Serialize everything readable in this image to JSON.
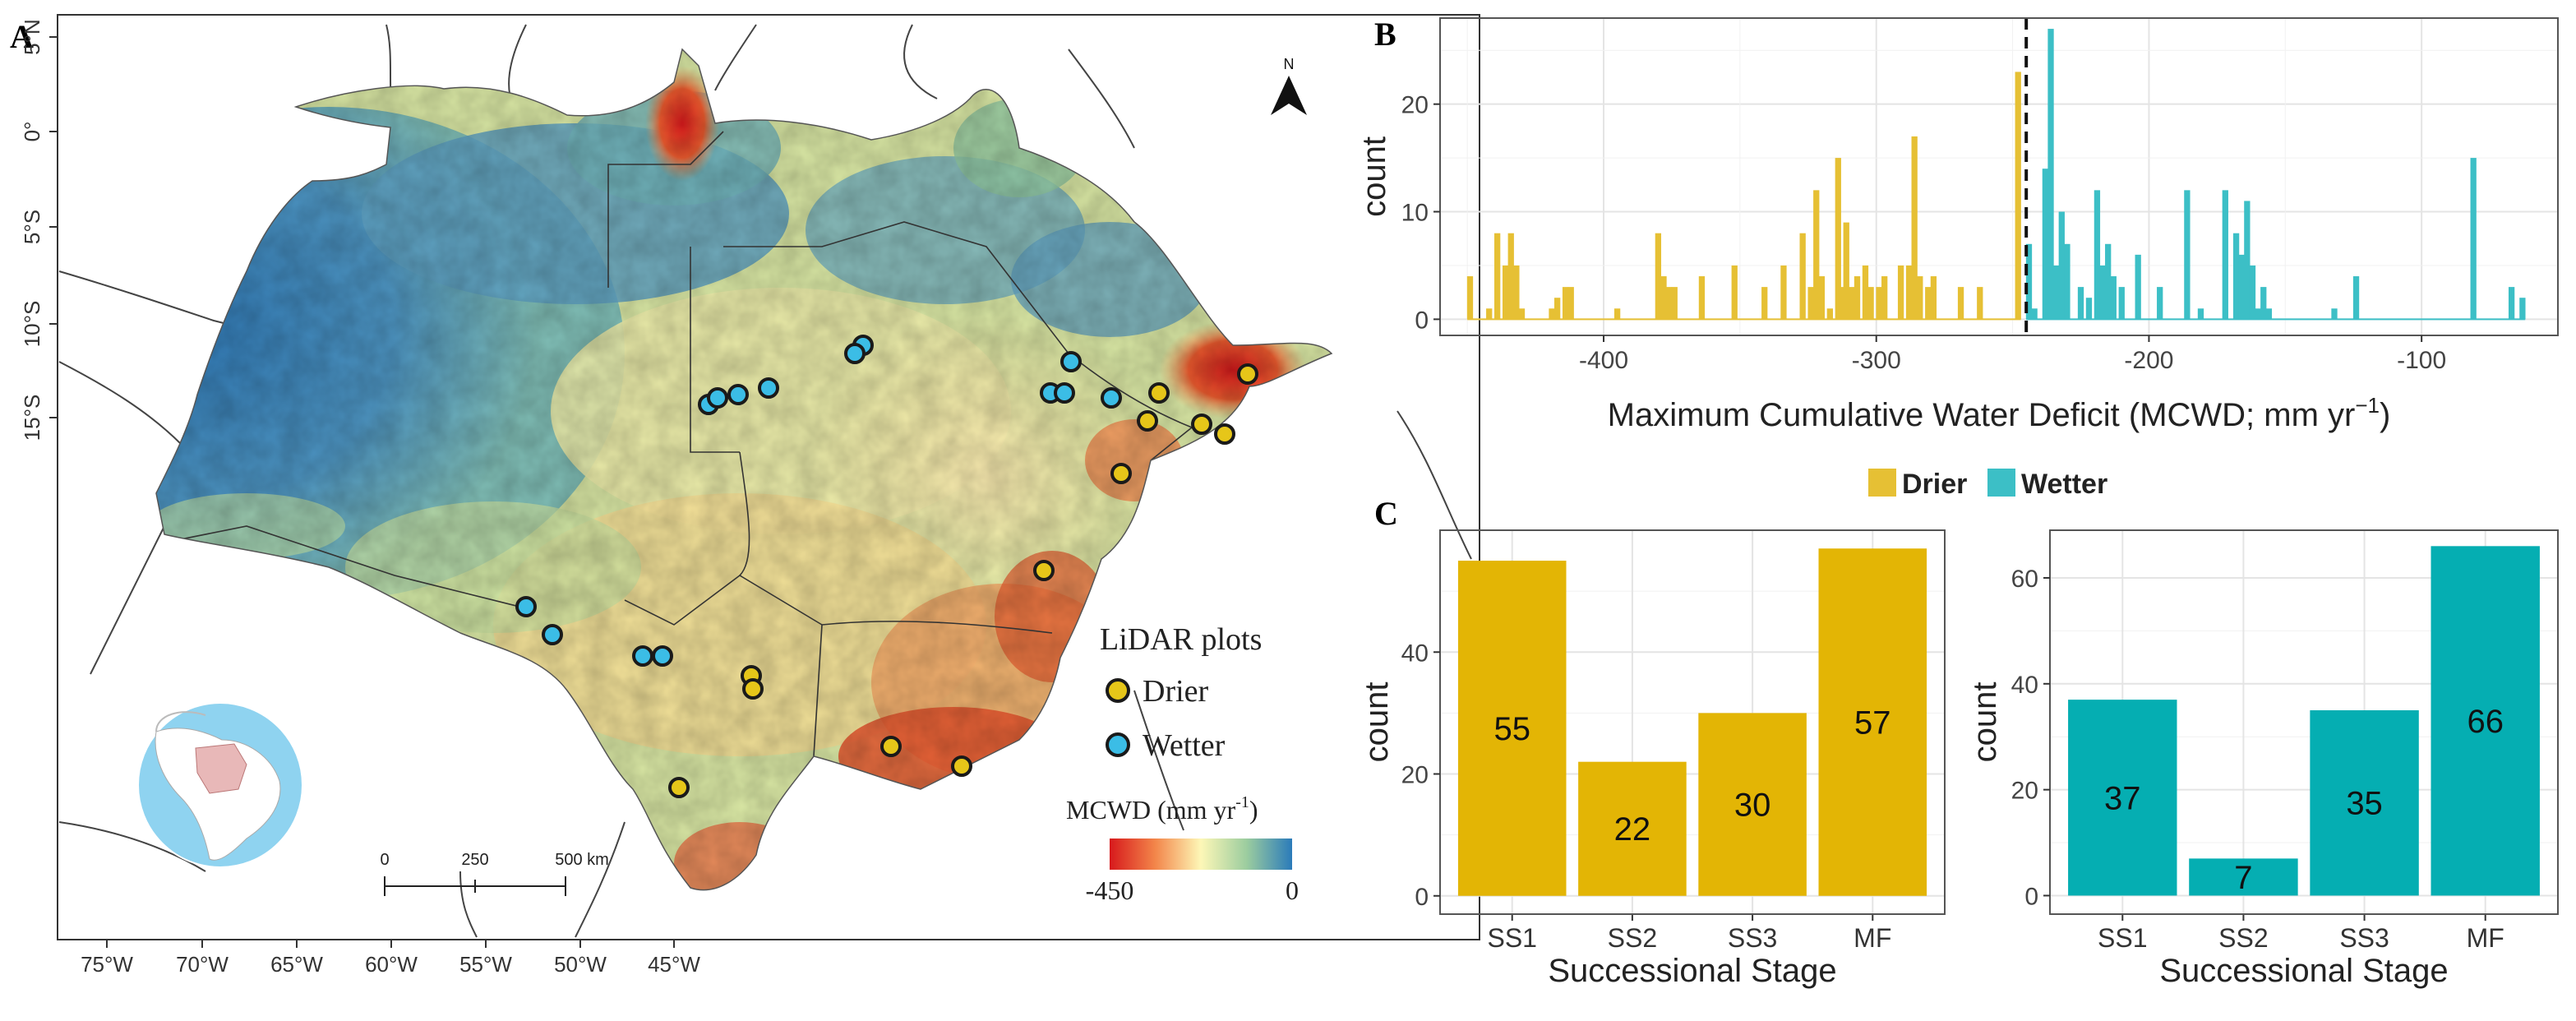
{
  "panels": {
    "a": "A",
    "b": "B",
    "c": "C"
  },
  "map": {
    "north_label": "N",
    "lat_ticks": [
      "5°N",
      "0°",
      "5°S",
      "10°S",
      "15°S"
    ],
    "lon_ticks": [
      "75°W",
      "70°W",
      "65°W",
      "60°W",
      "55°W",
      "50°W",
      "45°W"
    ],
    "scalebar": {
      "labels": [
        "0",
        "250",
        "500 km"
      ]
    },
    "legend": {
      "title": "LiDAR plots",
      "drier_label": "Drier",
      "wetter_label": "Wetter",
      "mcwd_title_main": "MCWD (mm yr",
      "mcwd_title_sup": "-1",
      "mcwd_title_end": ")",
      "colorbar_min": "-450",
      "colorbar_max": "0"
    },
    "colors": {
      "drier": "#e6c619",
      "wetter": "#3bbde6",
      "dry": "#d7191c",
      "mid": "#fdf7b7",
      "wet": "#2b7bba",
      "ocean": "#8fd3f0"
    }
  },
  "chart_data": [
    {
      "panel": "B",
      "type": "bar",
      "subtype": "histogram",
      "xlabel_main": "Maximum Cumulative Water Deficit (MCWD; mm yr",
      "xlabel_sup": "−1",
      "xlabel_end": ")",
      "ylabel": "count",
      "xlim": [
        -460,
        -50
      ],
      "ylim": [
        -1.5,
        28
      ],
      "xticks": [
        -400,
        -300,
        -200,
        -100
      ],
      "xtick_labels": [
        "-400",
        "-300",
        "-200",
        "-100"
      ],
      "yticks": [
        0,
        10,
        20
      ],
      "ytick_labels": [
        "0",
        "10",
        "20"
      ],
      "threshold": -245,
      "series": [
        {
          "name": "Drier",
          "color": "#e6c034",
          "x": [
            -449,
            -442,
            -439,
            -436,
            -434,
            -432,
            -430,
            -419,
            -417,
            -414,
            -412,
            -395,
            -380,
            -378,
            -376,
            -374,
            -364,
            -352,
            -341,
            -334,
            -327,
            -324,
            -322,
            -320,
            -317,
            -314,
            -313,
            -311,
            -309,
            -307,
            -304,
            -302,
            -299,
            -297,
            -291,
            -288,
            -286,
            -284,
            -281,
            -279,
            -269,
            -262,
            -248
          ],
          "values": [
            4,
            1,
            8,
            5,
            8,
            5,
            1,
            1,
            2,
            3,
            3,
            1,
            8,
            4,
            3,
            3,
            4,
            5,
            3,
            5,
            8,
            3,
            12,
            4,
            1,
            15,
            3,
            9,
            3,
            4,
            5,
            3,
            3,
            4,
            5,
            5,
            17,
            4,
            3,
            4,
            3,
            3,
            23
          ]
        },
        {
          "name": "Wetter",
          "color": "#3cbfc6",
          "x": [
            -244,
            -242,
            -238,
            -236,
            -234,
            -232,
            -230,
            -225,
            -222,
            -219,
            -217,
            -215,
            -213,
            -210,
            -204,
            -196,
            -186,
            -181,
            -172,
            -168,
            -166,
            -164,
            -162,
            -160,
            -158,
            -156,
            -132,
            -124,
            -81,
            -67,
            -63
          ],
          "values": [
            7,
            1,
            14,
            27,
            5,
            10,
            7,
            3,
            2,
            12,
            5,
            7,
            4,
            3,
            6,
            3,
            12,
            1,
            12,
            8,
            6,
            11,
            5,
            1,
            3,
            1,
            1,
            4,
            15,
            3,
            2
          ]
        }
      ],
      "legend": [
        "Drier",
        "Wetter"
      ]
    },
    {
      "panel": "C-left",
      "type": "bar",
      "series_name": "Drier",
      "color": "#e3b505",
      "categories": [
        "SS1",
        "SS2",
        "SS3",
        "MF"
      ],
      "values": [
        55,
        22,
        30,
        57
      ],
      "xlabel": "Successional Stage",
      "ylabel": "count",
      "ylim": [
        -3,
        60
      ],
      "yticks": [
        0,
        20,
        40
      ],
      "ytick_labels": [
        "0",
        "20",
        "40"
      ]
    },
    {
      "panel": "C-right",
      "type": "bar",
      "series_name": "Wetter",
      "color": "#05aeb2",
      "categories": [
        "SS1",
        "SS2",
        "SS3",
        "MF"
      ],
      "values": [
        37,
        7,
        35,
        66
      ],
      "xlabel": "Successional Stage",
      "ylabel": "count",
      "ylim": [
        -3.5,
        69
      ],
      "yticks": [
        0,
        20,
        40,
        60
      ],
      "ytick_labels": [
        "0",
        "20",
        "40",
        "60"
      ]
    }
  ]
}
